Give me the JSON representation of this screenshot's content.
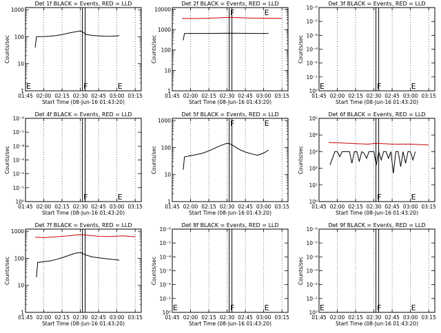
{
  "chart_data": [
    {
      "type": "line",
      "title": "Det 1f BLACK = Events, RED = LLD",
      "xlabel": "Start Time (08-Jun-16 01:43:20)",
      "ylabel": "Counts/sec",
      "x_ticks": [
        "01:45",
        "02:00",
        "02:15",
        "02:30",
        "02:45",
        "03:00",
        "03:15"
      ],
      "y_scale": "log",
      "y_tick_labels": [
        "1",
        "10",
        "100",
        "1000"
      ],
      "y_tick_values": [
        1,
        10,
        100,
        1000
      ],
      "ylim": [
        1,
        1200
      ],
      "markers": [
        {
          "label": "E",
          "x": "01:45"
        },
        {
          "label": "F",
          "x": "02:32"
        },
        {
          "label": "E",
          "x": "03:00"
        }
      ],
      "series": [
        {
          "color": "#000000",
          "x": [
            "01:53",
            "01:54",
            "02:00",
            "02:05",
            "02:10",
            "02:15",
            "02:20",
            "02:25",
            "02:30",
            "02:32",
            "02:35",
            "02:40",
            "02:45",
            "02:50",
            "02:55",
            "03:00",
            "03:02"
          ],
          "values": [
            40,
            100,
            102,
            105,
            110,
            120,
            135,
            150,
            165,
            150,
            120,
            112,
            108,
            105,
            104,
            108,
            110
          ]
        }
      ]
    },
    {
      "type": "line",
      "title": "Det 2f BLACK = Events, RED = LLD",
      "xlabel": "Start Time (08-Jun-16 01:43:20)",
      "ylabel": "Counts/sec",
      "x_ticks": [
        "01:45",
        "02:00",
        "02:15",
        "02:30",
        "02:45",
        "03:00",
        "03:15"
      ],
      "y_scale": "log",
      "y_tick_labels": [
        "1",
        "10",
        "100",
        "1000",
        "10000"
      ],
      "y_tick_values": [
        1,
        10,
        100,
        1000,
        10000
      ],
      "ylim": [
        1,
        12000
      ],
      "markers": [
        {
          "label": "F",
          "x": "02:32"
        },
        {
          "label": "E",
          "x": "03:00"
        }
      ],
      "series": [
        {
          "color": "#cc0000",
          "x": [
            "01:53",
            "02:05",
            "02:15",
            "02:25",
            "02:32",
            "02:40",
            "02:50",
            "03:00",
            "03:10",
            "03:15"
          ],
          "values": [
            3500,
            3500,
            3600,
            3800,
            4000,
            3800,
            3700,
            3600,
            3600,
            3500
          ]
        },
        {
          "color": "#000000",
          "x": [
            "01:54",
            "01:55",
            "02:05",
            "02:15",
            "02:25",
            "02:32",
            "02:40",
            "02:50",
            "03:00",
            "03:04"
          ],
          "values": [
            300,
            650,
            650,
            650,
            660,
            670,
            660,
            650,
            650,
            650
          ]
        }
      ]
    },
    {
      "type": "line",
      "title": "Det 3f BLACK = Events, RED = LLD",
      "xlabel": "Start Time (08-Jun-16 01:43:20)",
      "ylabel": "Counts/sec",
      "x_ticks": [
        "01:45",
        "02:00",
        "02:15",
        "02:30",
        "02:45",
        "03:00",
        "03:15"
      ],
      "y_scale": "log",
      "y_tick_labels": [
        "10⁰",
        "10⁻¹",
        "10⁻²",
        "10⁻³",
        "10⁻⁴",
        "10⁻⁵",
        "10⁻⁶"
      ],
      "y_tick_values": [
        0,
        1,
        2,
        3,
        4,
        5,
        6
      ],
      "ylim": [
        0,
        6
      ],
      "markers": [
        {
          "label": "E",
          "x": "01:45"
        },
        {
          "label": "F",
          "x": "02:32"
        },
        {
          "label": "E",
          "x": "03:00"
        }
      ],
      "series": []
    },
    {
      "type": "line",
      "title": "Det 4f BLACK = Events, RED = LLD",
      "xlabel": "Start Time (08-Jun-16 01:43:20)",
      "ylabel": "Counts/sec",
      "x_ticks": [
        "01:45",
        "02:00",
        "02:15",
        "02:30",
        "02:45",
        "03:00",
        "03:15"
      ],
      "y_scale": "log",
      "y_tick_labels": [
        "10⁰",
        "10⁻¹",
        "10⁻²",
        "10⁻³",
        "10⁻⁴",
        "10⁻⁵",
        "10⁻⁶"
      ],
      "y_tick_values": [
        0,
        1,
        2,
        3,
        4,
        5,
        6
      ],
      "ylim": [
        0,
        6
      ],
      "markers": [
        {
          "label": "F",
          "x": "02:32"
        },
        {
          "label": "E",
          "x": "03:00"
        }
      ],
      "series": []
    },
    {
      "type": "line",
      "title": "Det 5f BLACK = Events, RED = LLD",
      "xlabel": "Start Time (08-Jun-16 01:43:20)",
      "ylabel": "Counts/sec",
      "x_ticks": [
        "01:45",
        "02:00",
        "02:15",
        "02:30",
        "02:45",
        "03:00",
        "03:15"
      ],
      "y_scale": "log",
      "y_tick_labels": [
        "1",
        "10",
        "100",
        "1000"
      ],
      "y_tick_values": [
        1,
        10,
        100,
        1000
      ],
      "ylim": [
        1,
        1200
      ],
      "markers": [
        {
          "label": "F",
          "x": "02:32"
        },
        {
          "label": "E",
          "x": "03:00"
        }
      ],
      "series": [
        {
          "color": "#000000",
          "x": [
            "01:54",
            "01:55",
            "02:00",
            "02:05",
            "02:10",
            "02:15",
            "02:20",
            "02:25",
            "02:30",
            "02:32",
            "02:35",
            "02:40",
            "02:45",
            "02:50",
            "02:55",
            "03:00",
            "03:04"
          ],
          "values": [
            15,
            45,
            50,
            55,
            62,
            75,
            95,
            120,
            145,
            140,
            118,
            85,
            68,
            58,
            52,
            62,
            80
          ]
        }
      ]
    },
    {
      "type": "line",
      "title": "Det 6f BLACK = Events, RED = LLD",
      "xlabel": "Start Time (08-Jun-16 01:43:20)",
      "ylabel": "Counts/sec",
      "x_ticks": [
        "01:45",
        "02:00",
        "02:15",
        "02:30",
        "02:45",
        "03:00",
        "03:15"
      ],
      "y_scale": "log",
      "y_tick_labels": [
        "10⁰",
        "10¹",
        "10²",
        "10³",
        "10⁴",
        "10⁵"
      ],
      "y_tick_values": [
        0,
        1,
        2,
        3,
        4,
        5
      ],
      "ylim": [
        0,
        5
      ],
      "markers": [
        {
          "label": "F",
          "x": "02:32"
        },
        {
          "label": "E",
          "x": "03:00"
        }
      ],
      "series": [
        {
          "color": "#cc0000",
          "x": [
            "01:53",
            "02:10",
            "02:25",
            "02:32",
            "02:45",
            "03:00",
            "03:15"
          ],
          "values": [
            3.55,
            3.5,
            3.45,
            3.5,
            3.45,
            3.45,
            3.4
          ]
        },
        {
          "color": "#000000",
          "x": [
            "01:54",
            "01:58",
            "02:00",
            "02:02",
            "02:04",
            "02:06",
            "02:08",
            "02:10",
            "02:12",
            "02:14",
            "02:16",
            "02:18",
            "02:20",
            "02:22",
            "02:24",
            "02:26",
            "02:28",
            "02:30",
            "02:32",
            "02:34",
            "02:36",
            "02:38",
            "02:40",
            "02:42",
            "02:44",
            "02:46",
            "02:48",
            "02:50",
            "02:52",
            "02:54",
            "02:56",
            "02:58",
            "03:00",
            "03:02",
            "03:04"
          ],
          "values": [
            2.2,
            3.0,
            3.0,
            2.7,
            3.0,
            3.0,
            3.0,
            3.0,
            2.3,
            3.0,
            3.0,
            2.4,
            3.0,
            2.9,
            2.6,
            3.0,
            3.0,
            3.0,
            2.2,
            3.0,
            2.5,
            3.0,
            3.0,
            2.6,
            3.0,
            1.7,
            3.0,
            3.0,
            2.1,
            3.0,
            2.3,
            3.0,
            3.0,
            2.5,
            3.0
          ]
        }
      ]
    },
    {
      "type": "line",
      "title": "Det 7f BLACK = Events, RED = LLD",
      "xlabel": "Start Time (08-Jun-16 01:43:20)",
      "ylabel": "Counts/sec",
      "x_ticks": [
        "01:45",
        "02:00",
        "02:15",
        "02:30",
        "02:45",
        "03:00",
        "03:15"
      ],
      "y_scale": "log",
      "y_tick_labels": [
        "1",
        "10",
        "100",
        "1000"
      ],
      "y_tick_values": [
        1,
        10,
        100,
        1000
      ],
      "ylim": [
        1,
        1200
      ],
      "markers": [],
      "series": [
        {
          "color": "#cc0000",
          "x": [
            "01:53",
            "02:00",
            "02:10",
            "02:20",
            "02:30",
            "02:35",
            "02:45",
            "02:55",
            "03:05",
            "03:15"
          ],
          "values": [
            600,
            580,
            620,
            680,
            750,
            720,
            650,
            640,
            680,
            620
          ]
        },
        {
          "color": "#000000",
          "x": [
            "01:54",
            "01:55",
            "02:00",
            "02:05",
            "02:10",
            "02:15",
            "02:20",
            "02:25",
            "02:30",
            "02:32",
            "02:35",
            "02:40",
            "02:45",
            "02:50",
            "02:55",
            "03:00",
            "03:02"
          ],
          "values": [
            20,
            70,
            75,
            80,
            90,
            105,
            125,
            150,
            165,
            150,
            130,
            112,
            105,
            98,
            92,
            88,
            85
          ]
        }
      ]
    },
    {
      "type": "line",
      "title": "Det 8f BLACK = Events, RED = LLD",
      "xlabel": "Start Time (08-Jun-16 01:43:20)",
      "ylabel": "Counts/sec",
      "x_ticks": [
        "01:45",
        "02:00",
        "02:15",
        "02:30",
        "02:45",
        "03:00",
        "03:15"
      ],
      "y_scale": "log",
      "y_tick_labels": [
        "10⁰",
        "10⁻¹",
        "10⁻²",
        "10⁻³",
        "10⁻⁴",
        "10⁻⁵",
        "10⁻⁶"
      ],
      "y_tick_values": [
        0,
        1,
        2,
        3,
        4,
        5,
        6
      ],
      "ylim": [
        0,
        6
      ],
      "markers": [
        {
          "label": "E",
          "x": "01:45"
        },
        {
          "label": "F",
          "x": "02:32"
        },
        {
          "label": "E",
          "x": "03:00"
        }
      ],
      "series": []
    },
    {
      "type": "line",
      "title": "Det 9f BLACK = Events, RED = LLD",
      "xlabel": "Start Time (08-Jun-16 01:43:20)",
      "ylabel": "Counts/sec",
      "x_ticks": [
        "01:45",
        "02:00",
        "02:15",
        "02:30",
        "02:45",
        "03:00",
        "03:15"
      ],
      "y_scale": "log",
      "y_tick_labels": [
        "10⁰",
        "10⁻¹",
        "10⁻²",
        "10⁻³",
        "10⁻⁴",
        "10⁻⁵",
        "10⁻⁶"
      ],
      "y_tick_values": [
        0,
        1,
        2,
        3,
        4,
        5,
        6
      ],
      "ylim": [
        0,
        6
      ],
      "markers": [
        {
          "label": "E",
          "x": "01:45"
        },
        {
          "label": "F",
          "x": "02:32"
        },
        {
          "label": "E",
          "x": "03:00"
        }
      ],
      "series": []
    }
  ]
}
